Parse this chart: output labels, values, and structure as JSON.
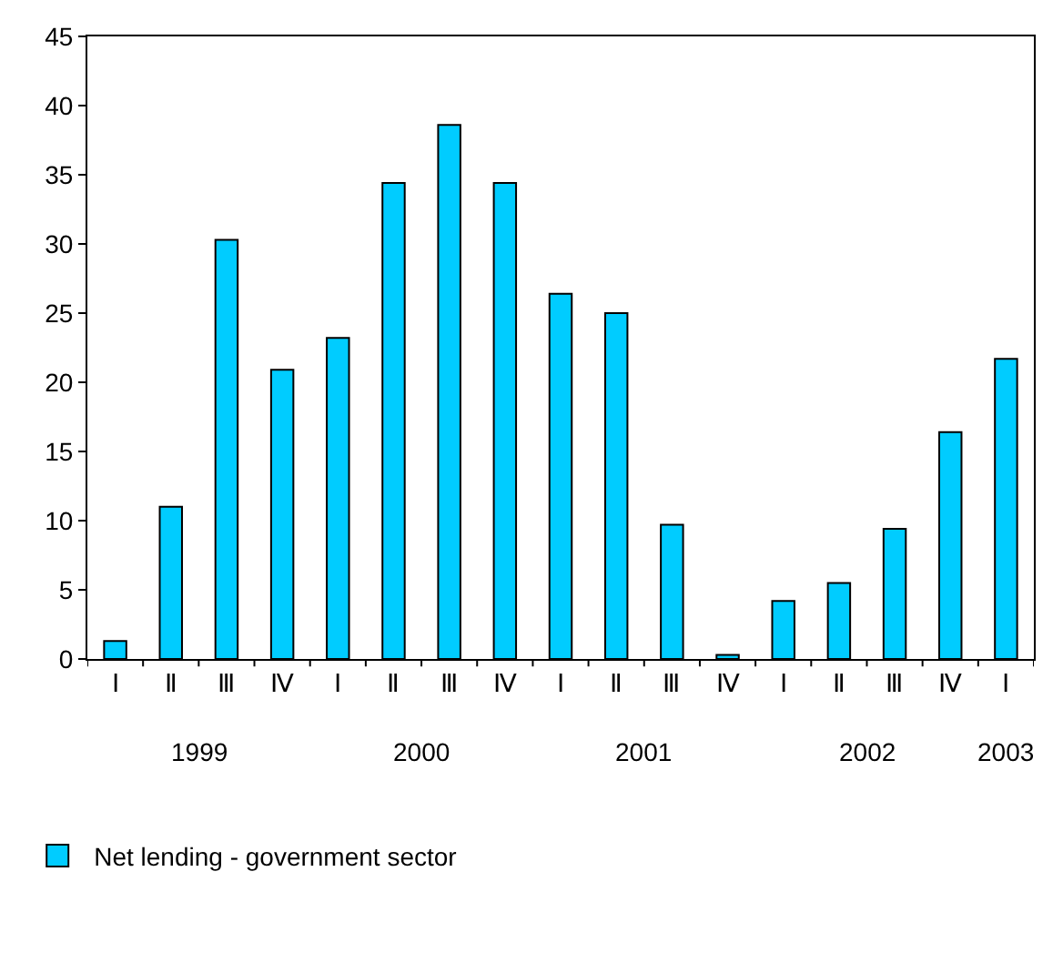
{
  "chart_data": {
    "type": "bar",
    "categories": [
      "Ⅰ",
      "Ⅱ",
      "Ⅲ",
      "Ⅳ",
      "Ⅰ",
      "Ⅱ",
      "Ⅲ",
      "Ⅳ",
      "Ⅰ",
      "Ⅱ",
      "Ⅲ",
      "Ⅳ",
      "Ⅰ",
      "Ⅱ",
      "Ⅲ",
      "Ⅳ",
      "Ⅰ"
    ],
    "series": [
      {
        "name": "Net lending - government sector",
        "color": "#00ccff",
        "values": [
          1.3,
          11,
          30.3,
          20.9,
          23.2,
          34.4,
          38.6,
          34.4,
          26.4,
          25,
          9.7,
          0.3,
          4.2,
          5.5,
          9.4,
          16.4,
          21.7
        ]
      }
    ],
    "annotations": [
      "1999",
      "2000",
      "2001",
      "2002",
      "2003"
    ],
    "ylim": [
      0,
      45
    ],
    "yticks": [
      0,
      5,
      10,
      15,
      20,
      25,
      30,
      35,
      40,
      45
    ],
    "grid": false,
    "legend": "bottom left"
  }
}
